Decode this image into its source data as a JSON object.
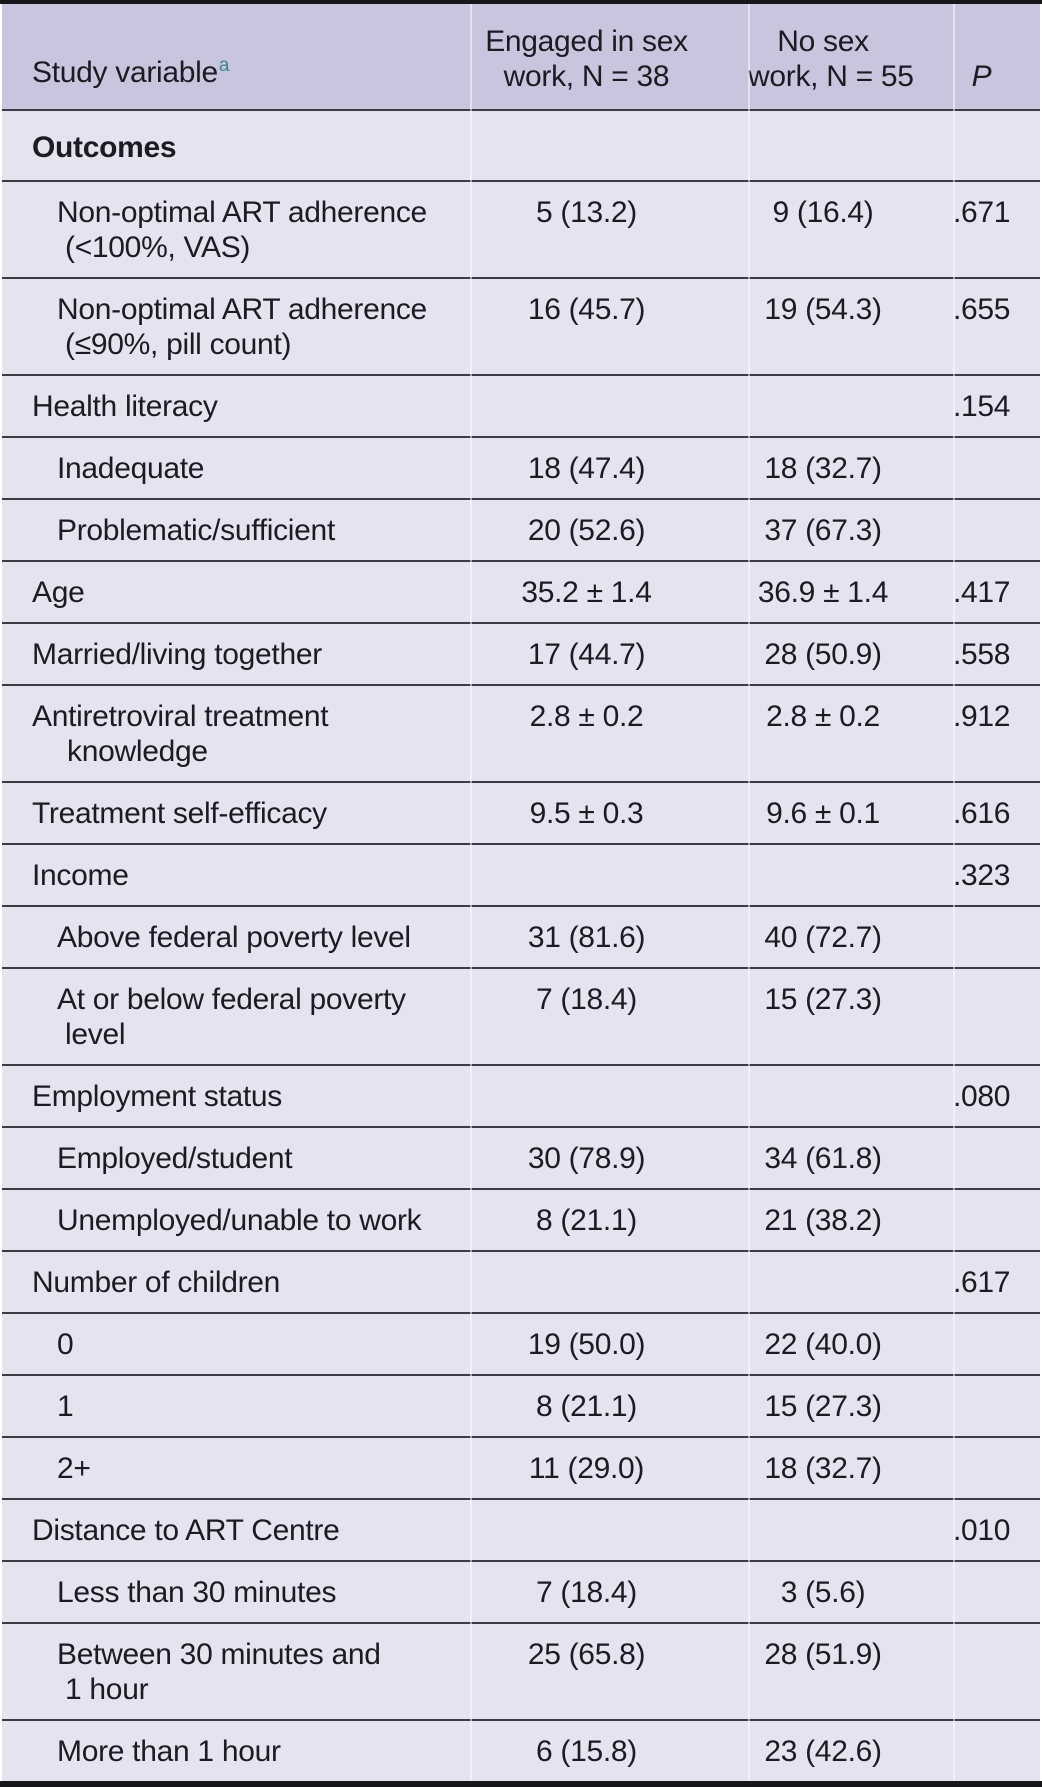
{
  "table": {
    "header": {
      "col1": "Study variable",
      "col1_sup": "a",
      "col2_line1": "Engaged in sex",
      "col2_line2": "work, N = 38",
      "col3_line1": "No sex",
      "col3_line2": "work, N = 55",
      "col4": "P"
    },
    "rows": [
      {
        "label": "Outcomes",
        "section": true
      },
      {
        "indent": true,
        "label": "Non-optimal ART adherence",
        "label2": "(<100%, VAS)",
        "engaged": "5 (13.2)",
        "no_sex": "9 (16.4)",
        "p": ".671"
      },
      {
        "indent": true,
        "label": "Non-optimal ART adherence",
        "label2": "(≤90%, pill count)",
        "engaged": "16 (45.7)",
        "no_sex": "19 (54.3)",
        "p": ".655"
      },
      {
        "label": "Health literacy",
        "p": ".154"
      },
      {
        "indent": true,
        "label": "Inadequate",
        "engaged": "18 (47.4)",
        "no_sex": "18 (32.7)"
      },
      {
        "indent": true,
        "label": "Problematic/sufficient",
        "engaged": "20 (52.6)",
        "no_sex": "37 (67.3)"
      },
      {
        "label": "Age",
        "engaged": "35.2 ± 1.4",
        "no_sex": "36.9 ± 1.4",
        "p": ".417"
      },
      {
        "label": "Married/living together",
        "engaged": "17 (44.7)",
        "no_sex": "28 (50.9)",
        "p": ".558"
      },
      {
        "label": "Antiretroviral treatment",
        "label2": "knowledge",
        "engaged": "2.8 ± 0.2",
        "no_sex": "2.8 ± 0.2",
        "p": ".912"
      },
      {
        "label": "Treatment self-efficacy",
        "engaged": "9.5 ± 0.3",
        "no_sex": "9.6 ± 0.1",
        "p": ".616"
      },
      {
        "label": "Income",
        "p": ".323"
      },
      {
        "indent": true,
        "label": "Above federal poverty level",
        "engaged": "31 (81.6)",
        "no_sex": "40 (72.7)"
      },
      {
        "indent": true,
        "label": "At or below federal poverty",
        "label2": "level",
        "engaged": "7 (18.4)",
        "no_sex": "15 (27.3)"
      },
      {
        "label": "Employment status",
        "p": ".080"
      },
      {
        "indent": true,
        "label": "Employed/student",
        "engaged": "30 (78.9)",
        "no_sex": "34 (61.8)"
      },
      {
        "indent": true,
        "label": "Unemployed/unable to work",
        "engaged": "8 (21.1)",
        "no_sex": "21 (38.2)"
      },
      {
        "label": "Number of children",
        "p": ".617"
      },
      {
        "indent": true,
        "label": "0",
        "engaged": "19 (50.0)",
        "no_sex": "22 (40.0)"
      },
      {
        "indent": true,
        "label": "1",
        "engaged": "8 (21.1)",
        "no_sex": "15 (27.3)"
      },
      {
        "indent": true,
        "label": "2+",
        "engaged": "11 (29.0)",
        "no_sex": "18 (32.7)"
      },
      {
        "label": "Distance to ART Centre",
        "p": ".010"
      },
      {
        "indent": true,
        "label": "Less than 30 minutes",
        "engaged": "7 (18.4)",
        "no_sex": "3 (5.6)"
      },
      {
        "indent": true,
        "label": "Between 30 minutes and",
        "label2": "1 hour",
        "engaged": "25 (65.8)",
        "no_sex": "28 (51.9)"
      },
      {
        "indent": true,
        "label": "More than 1 hour",
        "engaged": "6 (15.8)",
        "no_sex": "23 (42.6)"
      }
    ],
    "colors": {
      "header_bg": "#c7c6de",
      "body_bg": "#e4e3f0",
      "separator": "#3b3b45",
      "frame": "#17171b",
      "text": "#1b1b22",
      "superscript": "#3f8691"
    }
  }
}
